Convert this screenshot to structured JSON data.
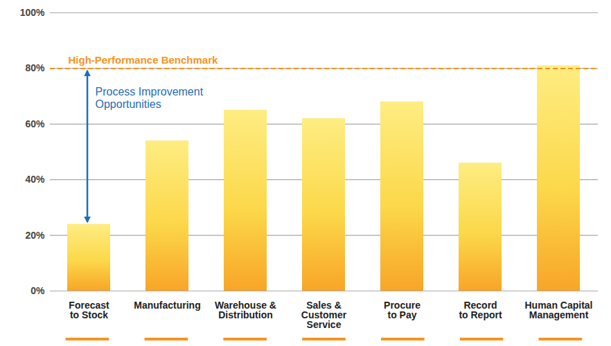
{
  "chart_data": {
    "type": "bar",
    "categories": [
      "Forecast\nto Stock",
      "Manufacturing",
      "Warehouse &\nDistribution",
      "Sales &\nCustomer\nService",
      "Procure\nto Pay",
      "Record\nto Report",
      "Human Capital\nManagement"
    ],
    "values": [
      24,
      54,
      65,
      62,
      68,
      46,
      81
    ],
    "color": "#fcd84a",
    "ylim": [
      0,
      100
    ],
    "yticks": [
      {
        "value": 0,
        "label": "0%"
      },
      {
        "value": 20,
        "label": "20%"
      },
      {
        "value": 40,
        "label": "40%"
      },
      {
        "value": 60,
        "label": "60%"
      },
      {
        "value": 80,
        "label": "80%"
      },
      {
        "value": 100,
        "label": "100%"
      }
    ],
    "grid": true,
    "annotations": [
      {
        "text": "High-Performance Benchmark",
        "y": 80,
        "color": "#f7941d",
        "line_style": "dashed"
      },
      {
        "text": "Process Improvement\nOpportunities",
        "x": "Forecast\nto Stock",
        "color": "#1f6db5"
      }
    ]
  }
}
